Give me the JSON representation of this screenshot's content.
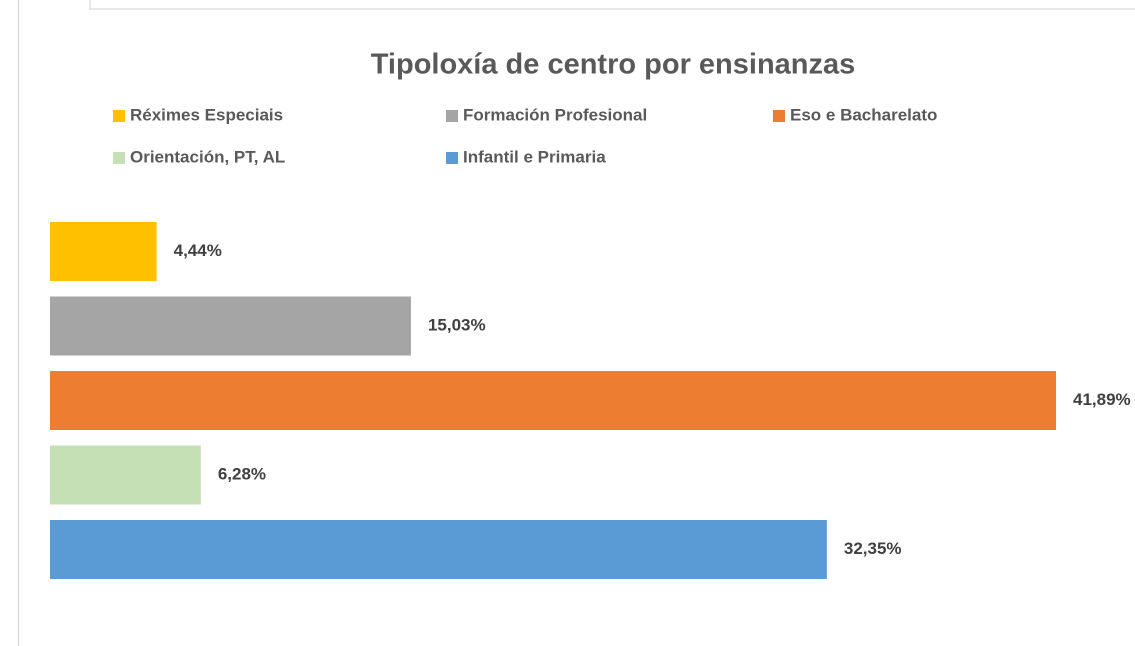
{
  "chart_data": {
    "type": "bar",
    "orientation": "horizontal",
    "title": "Tipoloxía de centro por ensinanzas",
    "series": [
      {
        "name": "Réximes Especiais",
        "color": "#ffc000",
        "values": [
          4.44
        ],
        "value_labels": [
          "4,44%"
        ]
      },
      {
        "name": "Formación Profesional",
        "color": "#a5a5a5",
        "values": [
          15.03
        ],
        "value_labels": [
          "15,03%"
        ]
      },
      {
        "name": "Eso e Bacharelato",
        "color": "#ed7d31",
        "values": [
          41.89
        ],
        "value_labels": [
          "41,89%"
        ]
      },
      {
        "name": "Orientación, PT, AL",
        "color": "#c5e0b4",
        "values": [
          6.28
        ],
        "value_labels": [
          "6,28%"
        ]
      },
      {
        "name": "Infantil e Primaria",
        "color": "#5b9bd5",
        "values": [
          32.35
        ],
        "value_labels": [
          "32,35%"
        ]
      }
    ],
    "legend": "top"
  }
}
